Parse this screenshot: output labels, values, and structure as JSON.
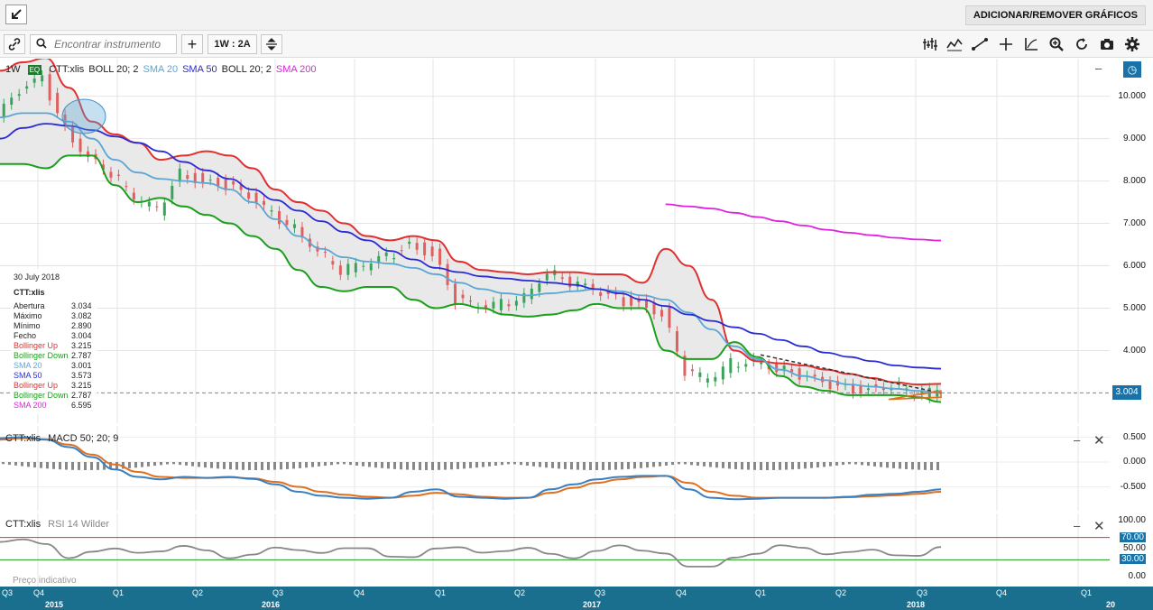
{
  "topbar": {
    "expand_icon": "expand-arrow-icon",
    "add_remove_label": "ADICIONAR/REMOVER GRÁFICOS"
  },
  "toolbar": {
    "search_placeholder": "Encontrar instrumento",
    "period_label": "1W : 2A",
    "tools": [
      "link-icon",
      "search-icon",
      "plus-icon",
      "compare-icon",
      "bars-icon",
      "indicators-icon",
      "draw-line-icon",
      "crosshair-icon",
      "axis-icon",
      "zoom-icon",
      "refresh-icon",
      "camera-icon",
      "settings-icon"
    ]
  },
  "main_pane": {
    "interval": "1W",
    "badge": "EQ",
    "legend": [
      {
        "text": "CTT:xlis",
        "color": "#222222"
      },
      {
        "text": "BOLL 20; 2",
        "color": "#222222"
      },
      {
        "text": "SMA 20",
        "color": "#5aa7d6"
      },
      {
        "text": "SMA 50",
        "color": "#2b2bd6"
      },
      {
        "text": "BOLL 20; 2",
        "color": "#222222"
      },
      {
        "text": "SMA 200",
        "color": "#e020e0"
      }
    ],
    "y_ticks": [
      "10.000",
      "9.000",
      "8.000",
      "7.000",
      "6.000",
      "5.000",
      "4.000"
    ],
    "last_price": "3.004"
  },
  "infobox": {
    "date": "30 July 2018",
    "symbol": "CTT:xlis",
    "rows": [
      {
        "label": "Abertura",
        "value": "3.034",
        "color": "#222222"
      },
      {
        "label": "Máximo",
        "value": "3.082",
        "color": "#222222"
      },
      {
        "label": "Mínimo",
        "value": "2.890",
        "color": "#222222"
      },
      {
        "label": "Fecho",
        "value": "3.004",
        "color": "#222222"
      },
      {
        "label": "Bollinger Up",
        "value": "3.215",
        "color": "#e03030"
      },
      {
        "label": "Bollinger Down",
        "value": "2.787",
        "color": "#1aa01a"
      },
      {
        "label": "SMA 20",
        "value": "3.001",
        "color": "#5aa7d6"
      },
      {
        "label": "SMA 50",
        "value": "3.573",
        "color": "#2b2bd6"
      },
      {
        "label": "Bollinger Up",
        "value": "3.215",
        "color": "#e03030"
      },
      {
        "label": "Bollinger Down",
        "value": "2.787",
        "color": "#1aa01a"
      },
      {
        "label": "SMA 200",
        "value": "6.595",
        "color": "#e020e0"
      }
    ]
  },
  "macd_pane": {
    "legend_symbol": "CTT:xlis",
    "legend_study": "MACD 50; 20; 9",
    "y_ticks": [
      "0.500",
      "0.000",
      "-0.500"
    ]
  },
  "rsi_pane": {
    "legend_symbol": "CTT:xlis",
    "legend_study": "RSI 14 Wilder",
    "y_ticks": [
      "100.00",
      "70.00",
      "50.00",
      "30.00",
      "0.00"
    ],
    "footer_note": "Preço indicativo"
  },
  "x_axis": {
    "quarters": [
      "Q3",
      "Q4",
      "Q1",
      "Q2",
      "Q3",
      "Q4",
      "Q1",
      "Q2",
      "Q3",
      "Q4",
      "Q1",
      "Q2",
      "Q3",
      "Q4",
      "Q1"
    ],
    "years": [
      "2015",
      "2016",
      "2017",
      "2018",
      "20"
    ]
  },
  "chart_data": {
    "type": "line",
    "series": [
      {
        "name": "CTT:xlis",
        "values": [
          9.5,
          10.1,
          10.4,
          9.2,
          8.6,
          8.2,
          7.6,
          7.3,
          8.2,
          8.0,
          7.9,
          7.6,
          7.2,
          6.9,
          6.4,
          5.9,
          6.0,
          6.2,
          6.5,
          6.3,
          5.2,
          5.0,
          5.1,
          5.3,
          5.9,
          5.6,
          5.4,
          5.2,
          5.1,
          4.9,
          3.5,
          3.3,
          3.7,
          3.8,
          3.6,
          3.4,
          3.2,
          3.1,
          3.1,
          3.2,
          3.0,
          3.0
        ]
      },
      {
        "name": "BOLL 20; 2",
        "values": [
          10.6,
          10.8,
          10.9,
          10.2,
          9.4,
          9.1,
          8.9,
          8.5,
          8.6,
          8.7,
          8.6,
          8.3,
          7.8,
          7.5,
          7.3,
          7.0,
          6.7,
          6.6,
          6.7,
          6.6,
          6.1,
          5.9,
          5.85,
          5.8,
          5.85,
          5.85,
          5.8,
          5.8,
          5.6,
          6.4,
          6.0,
          5.2,
          4.0,
          3.75,
          3.7,
          3.65,
          3.55,
          3.45,
          3.35,
          3.25,
          3.2,
          3.215
        ]
      },
      {
        "name": "SMA 20",
        "values": [
          9.5,
          9.6,
          9.6,
          9.4,
          9.0,
          8.5,
          8.2,
          8.05,
          8.0,
          7.95,
          7.8,
          7.5,
          7.1,
          6.7,
          6.4,
          6.2,
          6.1,
          6.05,
          5.95,
          5.8,
          5.6,
          5.45,
          5.35,
          5.3,
          5.35,
          5.4,
          5.45,
          5.4,
          5.3,
          5.2,
          4.9,
          4.5,
          4.1,
          3.8,
          3.55,
          3.4,
          3.3,
          3.2,
          3.15,
          3.1,
          3.05,
          3.001
        ]
      },
      {
        "name": "SMA 50",
        "values": [
          9.0,
          9.25,
          9.35,
          9.3,
          9.2,
          9.05,
          8.9,
          8.7,
          8.45,
          8.25,
          8.05,
          7.8,
          7.55,
          7.3,
          7.05,
          6.8,
          6.6,
          6.35,
          6.15,
          5.95,
          5.85,
          5.75,
          5.7,
          5.65,
          5.6,
          5.55,
          5.45,
          5.35,
          5.2,
          5.05,
          4.85,
          4.7,
          4.55,
          4.4,
          4.25,
          4.1,
          3.95,
          3.85,
          3.75,
          3.65,
          3.6,
          3.573
        ]
      },
      {
        "name": "SMA 200",
        "values": [
          null,
          null,
          null,
          null,
          null,
          null,
          null,
          null,
          null,
          null,
          null,
          null,
          null,
          null,
          null,
          null,
          null,
          null,
          null,
          null,
          null,
          null,
          null,
          null,
          null,
          null,
          null,
          null,
          null,
          7.45,
          7.4,
          7.35,
          7.25,
          7.15,
          7.05,
          6.95,
          6.85,
          6.78,
          6.72,
          6.66,
          6.62,
          6.595
        ]
      }
    ],
    "ylim": [
      2.5,
      10.8
    ],
    "grid": true
  }
}
